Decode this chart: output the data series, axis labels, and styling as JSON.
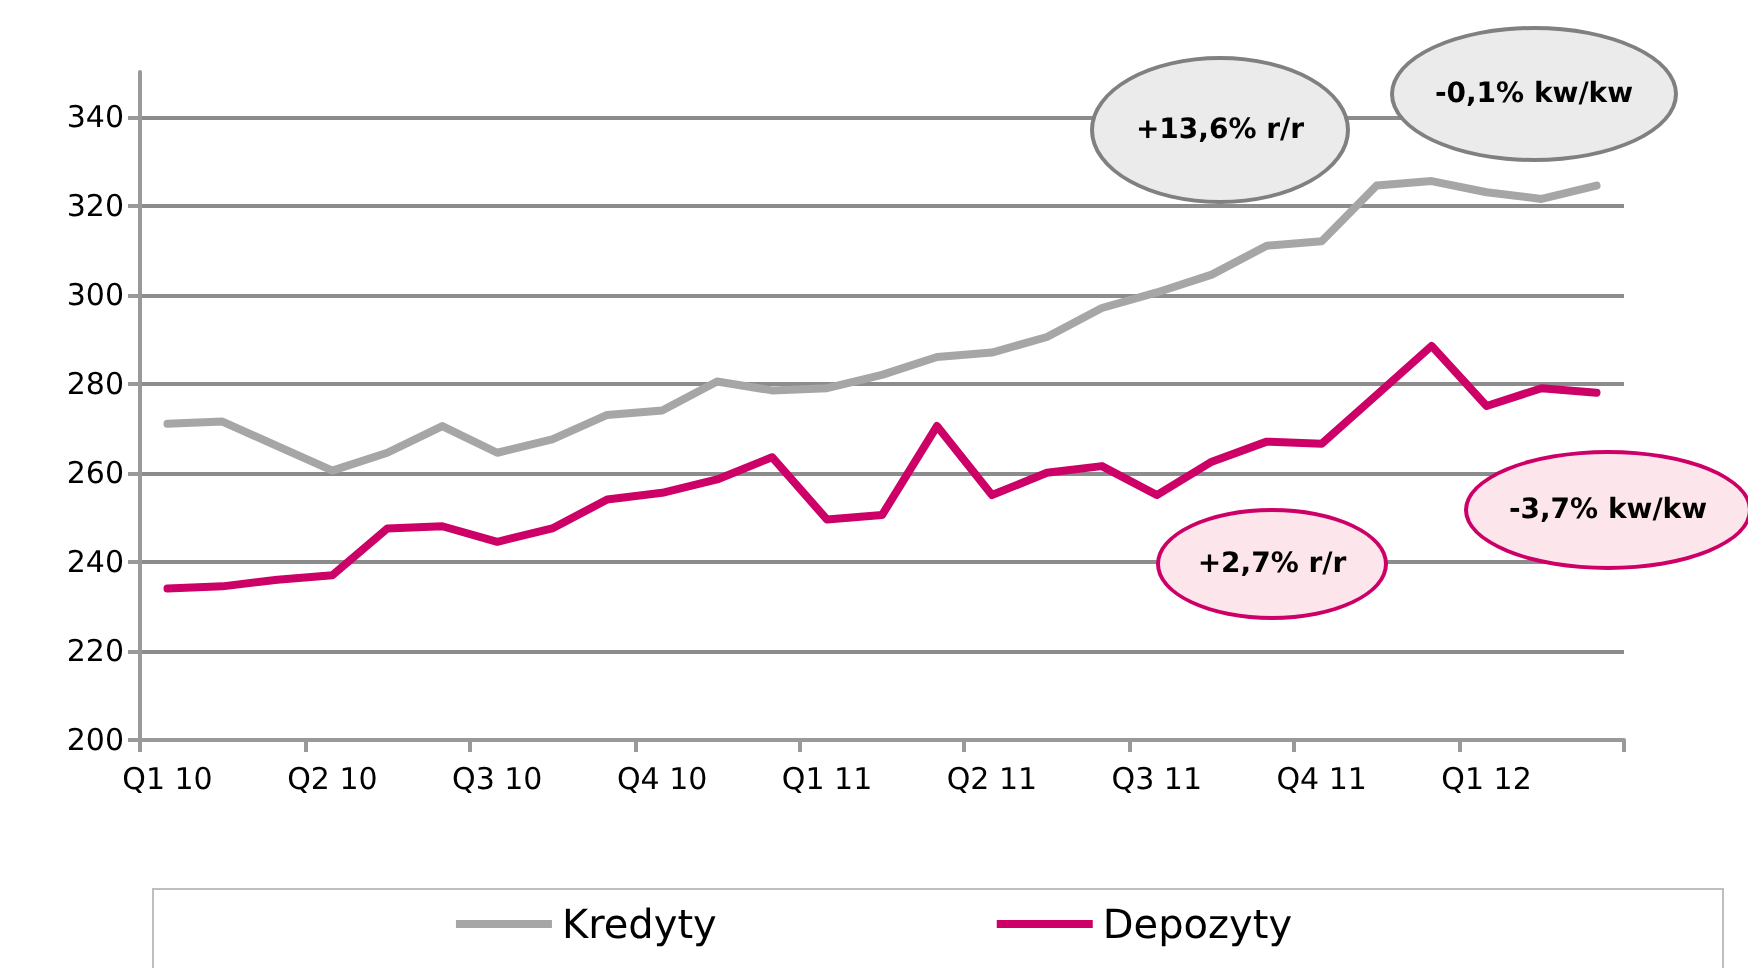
{
  "chart_data": {
    "type": "line",
    "categories": [
      "Q1 10",
      null,
      null,
      "Q2 10",
      null,
      null,
      "Q3 10",
      null,
      null,
      "Q4 10",
      null,
      null,
      "Q1 11",
      null,
      null,
      "Q2 11",
      null,
      null,
      "Q3 11",
      null,
      null,
      "Q4 11",
      null,
      null,
      "Q1 12",
      null,
      null
    ],
    "series": [
      {
        "name": "Kredyty",
        "color": "#a6a6a6",
        "values": [
          271,
          271.5,
          266,
          260.5,
          264.5,
          270.5,
          264.5,
          267.5,
          273,
          274,
          280.5,
          278.5,
          279,
          282,
          286,
          287,
          290.5,
          297,
          300.5,
          304.5,
          311,
          312,
          324.5,
          325.5,
          323,
          321.5,
          324.5
        ]
      },
      {
        "name": "Depozyty",
        "color": "#cc0066",
        "values": [
          234,
          234.5,
          236,
          237,
          247.5,
          248,
          244.5,
          247.5,
          254,
          255.5,
          258.5,
          263.5,
          249.5,
          250.5,
          270.5,
          255,
          260,
          261.5,
          255,
          262.5,
          267,
          266.5,
          277.5,
          288.5,
          275,
          279,
          278
        ]
      }
    ],
    "ylim": [
      200,
      350
    ],
    "yticks": [
      200,
      220,
      240,
      260,
      280,
      300,
      320,
      340
    ],
    "grid": "y",
    "legend": "bottom",
    "marker": "none",
    "line_style": "solid",
    "annotations": [
      "+13,6% r/r",
      "-0,1% kw/kw",
      "+2,7% r/r",
      "-3,7% kw/kw"
    ]
  }
}
